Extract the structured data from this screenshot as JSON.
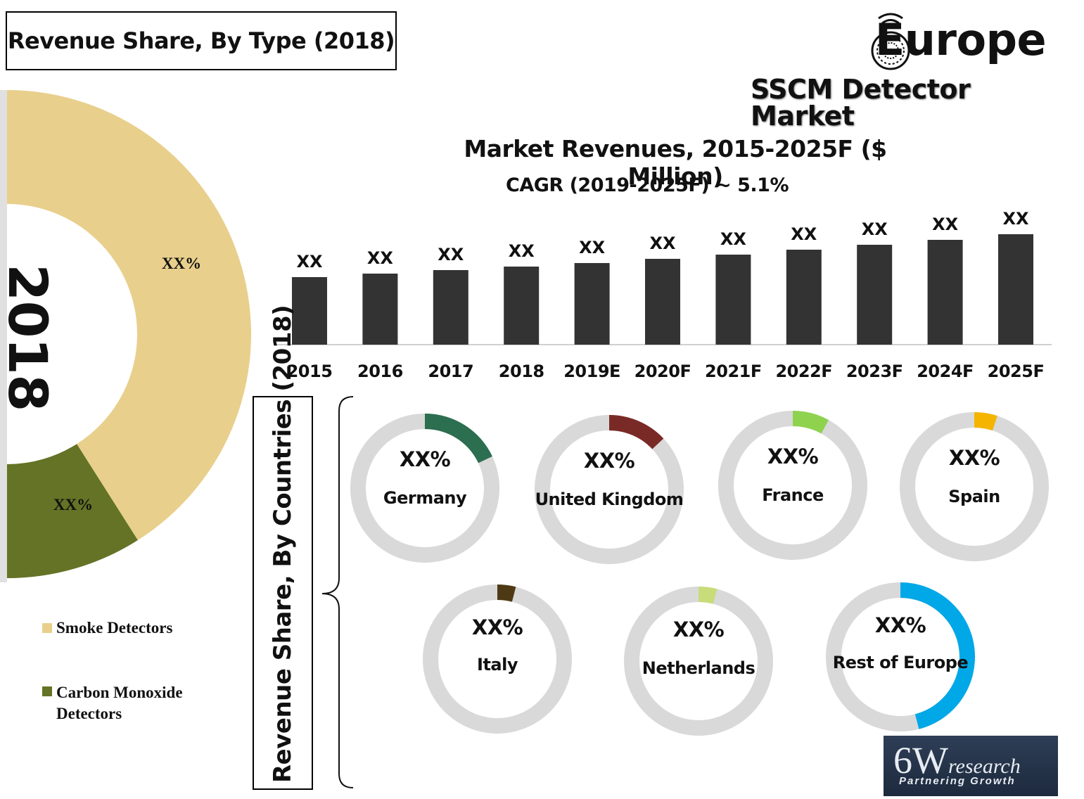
{
  "header": {
    "type_title": "Revenue Share, By Type (2018)",
    "brand_title": "Europe",
    "brand_subtitle": "SSCM Detector Market"
  },
  "type_share": {
    "year_label": "2018",
    "colors": {
      "smoke": "#e8cf8c",
      "carbon": "#647325"
    }
  },
  "bar_section": {
    "title": "Market Revenues, 2015-2025F ($ Million)",
    "cagr": "CAGR (2019-2025F) ~ 5.1%"
  },
  "countries_section": {
    "label": "Revenue Share, By Countries (2018)"
  },
  "footer": {
    "logo_main_6": "6",
    "logo_main_W": "W",
    "logo_research": "research",
    "logo_tagline": "Partnering Growth"
  },
  "chart_data": [
    {
      "type": "pie",
      "categories": [
        "Smoke Detectors",
        "Carbon Monoxide Detectors"
      ],
      "values": [
        0.82,
        0.18
      ],
      "labels": [
        "XX%",
        "XX%"
      ],
      "colors": [
        "#e8cf8c",
        "#647325"
      ],
      "title": "Revenue Share, By Type (2018)",
      "legend": "bottom-left"
    },
    {
      "type": "bar",
      "categories": [
        "2015",
        "2016",
        "2017",
        "2018",
        "2019E",
        "2020F",
        "2021F",
        "2022F",
        "2023F",
        "2024F",
        "2025F"
      ],
      "values": [
        96,
        101,
        106,
        111,
        116,
        122,
        128,
        135,
        142,
        149,
        157
      ],
      "data_labels": [
        "XX",
        "XX",
        "XX",
        "XX",
        "XX",
        "XX",
        "XX",
        "XX",
        "XX",
        "XX",
        "XX"
      ],
      "color": "#333333",
      "title": "Market Revenues, 2015-2025F ($ Million)",
      "subtitle": "CAGR (2019-2025F) ~ 5.1%",
      "grid": false
    },
    {
      "type": "pie",
      "title": "Revenue Share, By Countries (2018)",
      "categories": [
        "Germany",
        "United Kingdom",
        "France",
        "Spain",
        "Italy",
        "Netherlands",
        "Rest of Europe"
      ],
      "values": [
        0.18,
        0.13,
        0.08,
        0.05,
        0.04,
        0.04,
        0.46
      ],
      "labels": [
        "XX%",
        "XX%",
        "XX%",
        "XX%",
        "XX%",
        "XX%",
        "XX%"
      ],
      "colors": [
        "#2c6e50",
        "#7a2a26",
        "#8fd24e",
        "#f4b400",
        "#4d3a15",
        "#c8dc7a",
        "#00a8e8"
      ],
      "track_color": "#d9d9d9"
    }
  ]
}
